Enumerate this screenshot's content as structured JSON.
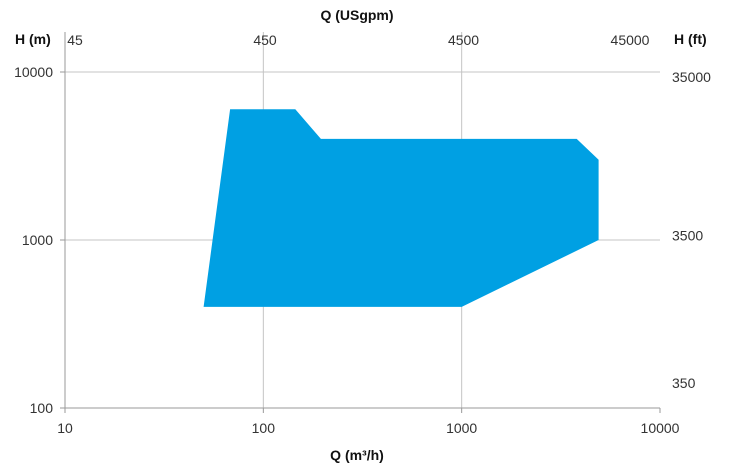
{
  "chart_data": {
    "type": "area",
    "x_scale": "log",
    "y_scale": "log",
    "grid": true,
    "fill_color": "#00a0e3",
    "grid_color": "#c4c4c4",
    "xlabel_bottom": "Q (m³/h)",
    "xlabel_top": "Q (USgpm)",
    "ylabel_left": "H (m)",
    "ylabel_right": "H (ft)",
    "x_range": [
      10,
      10000
    ],
    "y_range": [
      100,
      10000
    ],
    "x_ticks_bottom": [
      {
        "value": 10,
        "label": "10"
      },
      {
        "value": 100,
        "label": "100"
      },
      {
        "value": 1000,
        "label": "1000"
      },
      {
        "value": 10000,
        "label": "10000"
      }
    ],
    "x_ticks_top": [
      {
        "value": 10.2,
        "label": "45"
      },
      {
        "value": 102,
        "label": "450"
      },
      {
        "value": 1022,
        "label": "4500"
      },
      {
        "value": 10220,
        "label": "45000"
      }
    ],
    "y_ticks_left": [
      {
        "value": 100,
        "label": "100"
      },
      {
        "value": 1000,
        "label": "1000"
      },
      {
        "value": 10000,
        "label": "10000"
      }
    ],
    "y_ticks_right": [
      {
        "value": 107,
        "label": "350"
      },
      {
        "value": 1067,
        "label": "3500"
      },
      {
        "value": 10668,
        "label": "35000"
      }
    ],
    "region": [
      [
        50,
        400
      ],
      [
        68,
        6000
      ],
      [
        145,
        6000
      ],
      [
        195,
        4000
      ],
      [
        3800,
        4000
      ],
      [
        4900,
        3000
      ],
      [
        4900,
        1000
      ],
      [
        1000,
        400
      ]
    ]
  }
}
